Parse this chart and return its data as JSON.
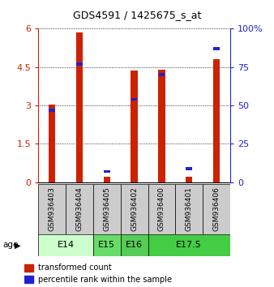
{
  "title": "GDS4591 / 1425675_s_at",
  "samples": [
    "GSM936403",
    "GSM936404",
    "GSM936405",
    "GSM936402",
    "GSM936400",
    "GSM936401",
    "GSM936406"
  ],
  "transformed_counts": [
    3.05,
    5.85,
    0.2,
    4.35,
    4.4,
    0.22,
    4.8
  ],
  "percentile_ranks": [
    47,
    77,
    7,
    54,
    70,
    9,
    87
  ],
  "age_groups": [
    {
      "label": "E14",
      "samples": [
        0,
        1
      ],
      "color": "#ccffcc"
    },
    {
      "label": "E15",
      "samples": [
        2
      ],
      "color": "#66dd66"
    },
    {
      "label": "E16",
      "samples": [
        3
      ],
      "color": "#55cc55"
    },
    {
      "label": "E17.5",
      "samples": [
        4,
        5,
        6
      ],
      "color": "#44cc44"
    }
  ],
  "ylim_left": [
    0,
    6
  ],
  "ylim_right": [
    0,
    100
  ],
  "yticks_left": [
    0,
    1.5,
    3.0,
    4.5,
    6.0
  ],
  "ytick_labels_left": [
    "0",
    "1.5",
    "3",
    "4.5",
    "6"
  ],
  "yticks_right": [
    0,
    25,
    50,
    75,
    100
  ],
  "ytick_labels_right": [
    "0",
    "25",
    "50",
    "75",
    "100%"
  ],
  "bar_color_red": "#cc2200",
  "bar_color_blue": "#2222cc",
  "bar_width": 0.25,
  "blue_marker_size": 0.12,
  "sample_box_color": "#cccccc",
  "legend_label_red": "transformed count",
  "legend_label_blue": "percentile rank within the sample",
  "age_label": "age"
}
